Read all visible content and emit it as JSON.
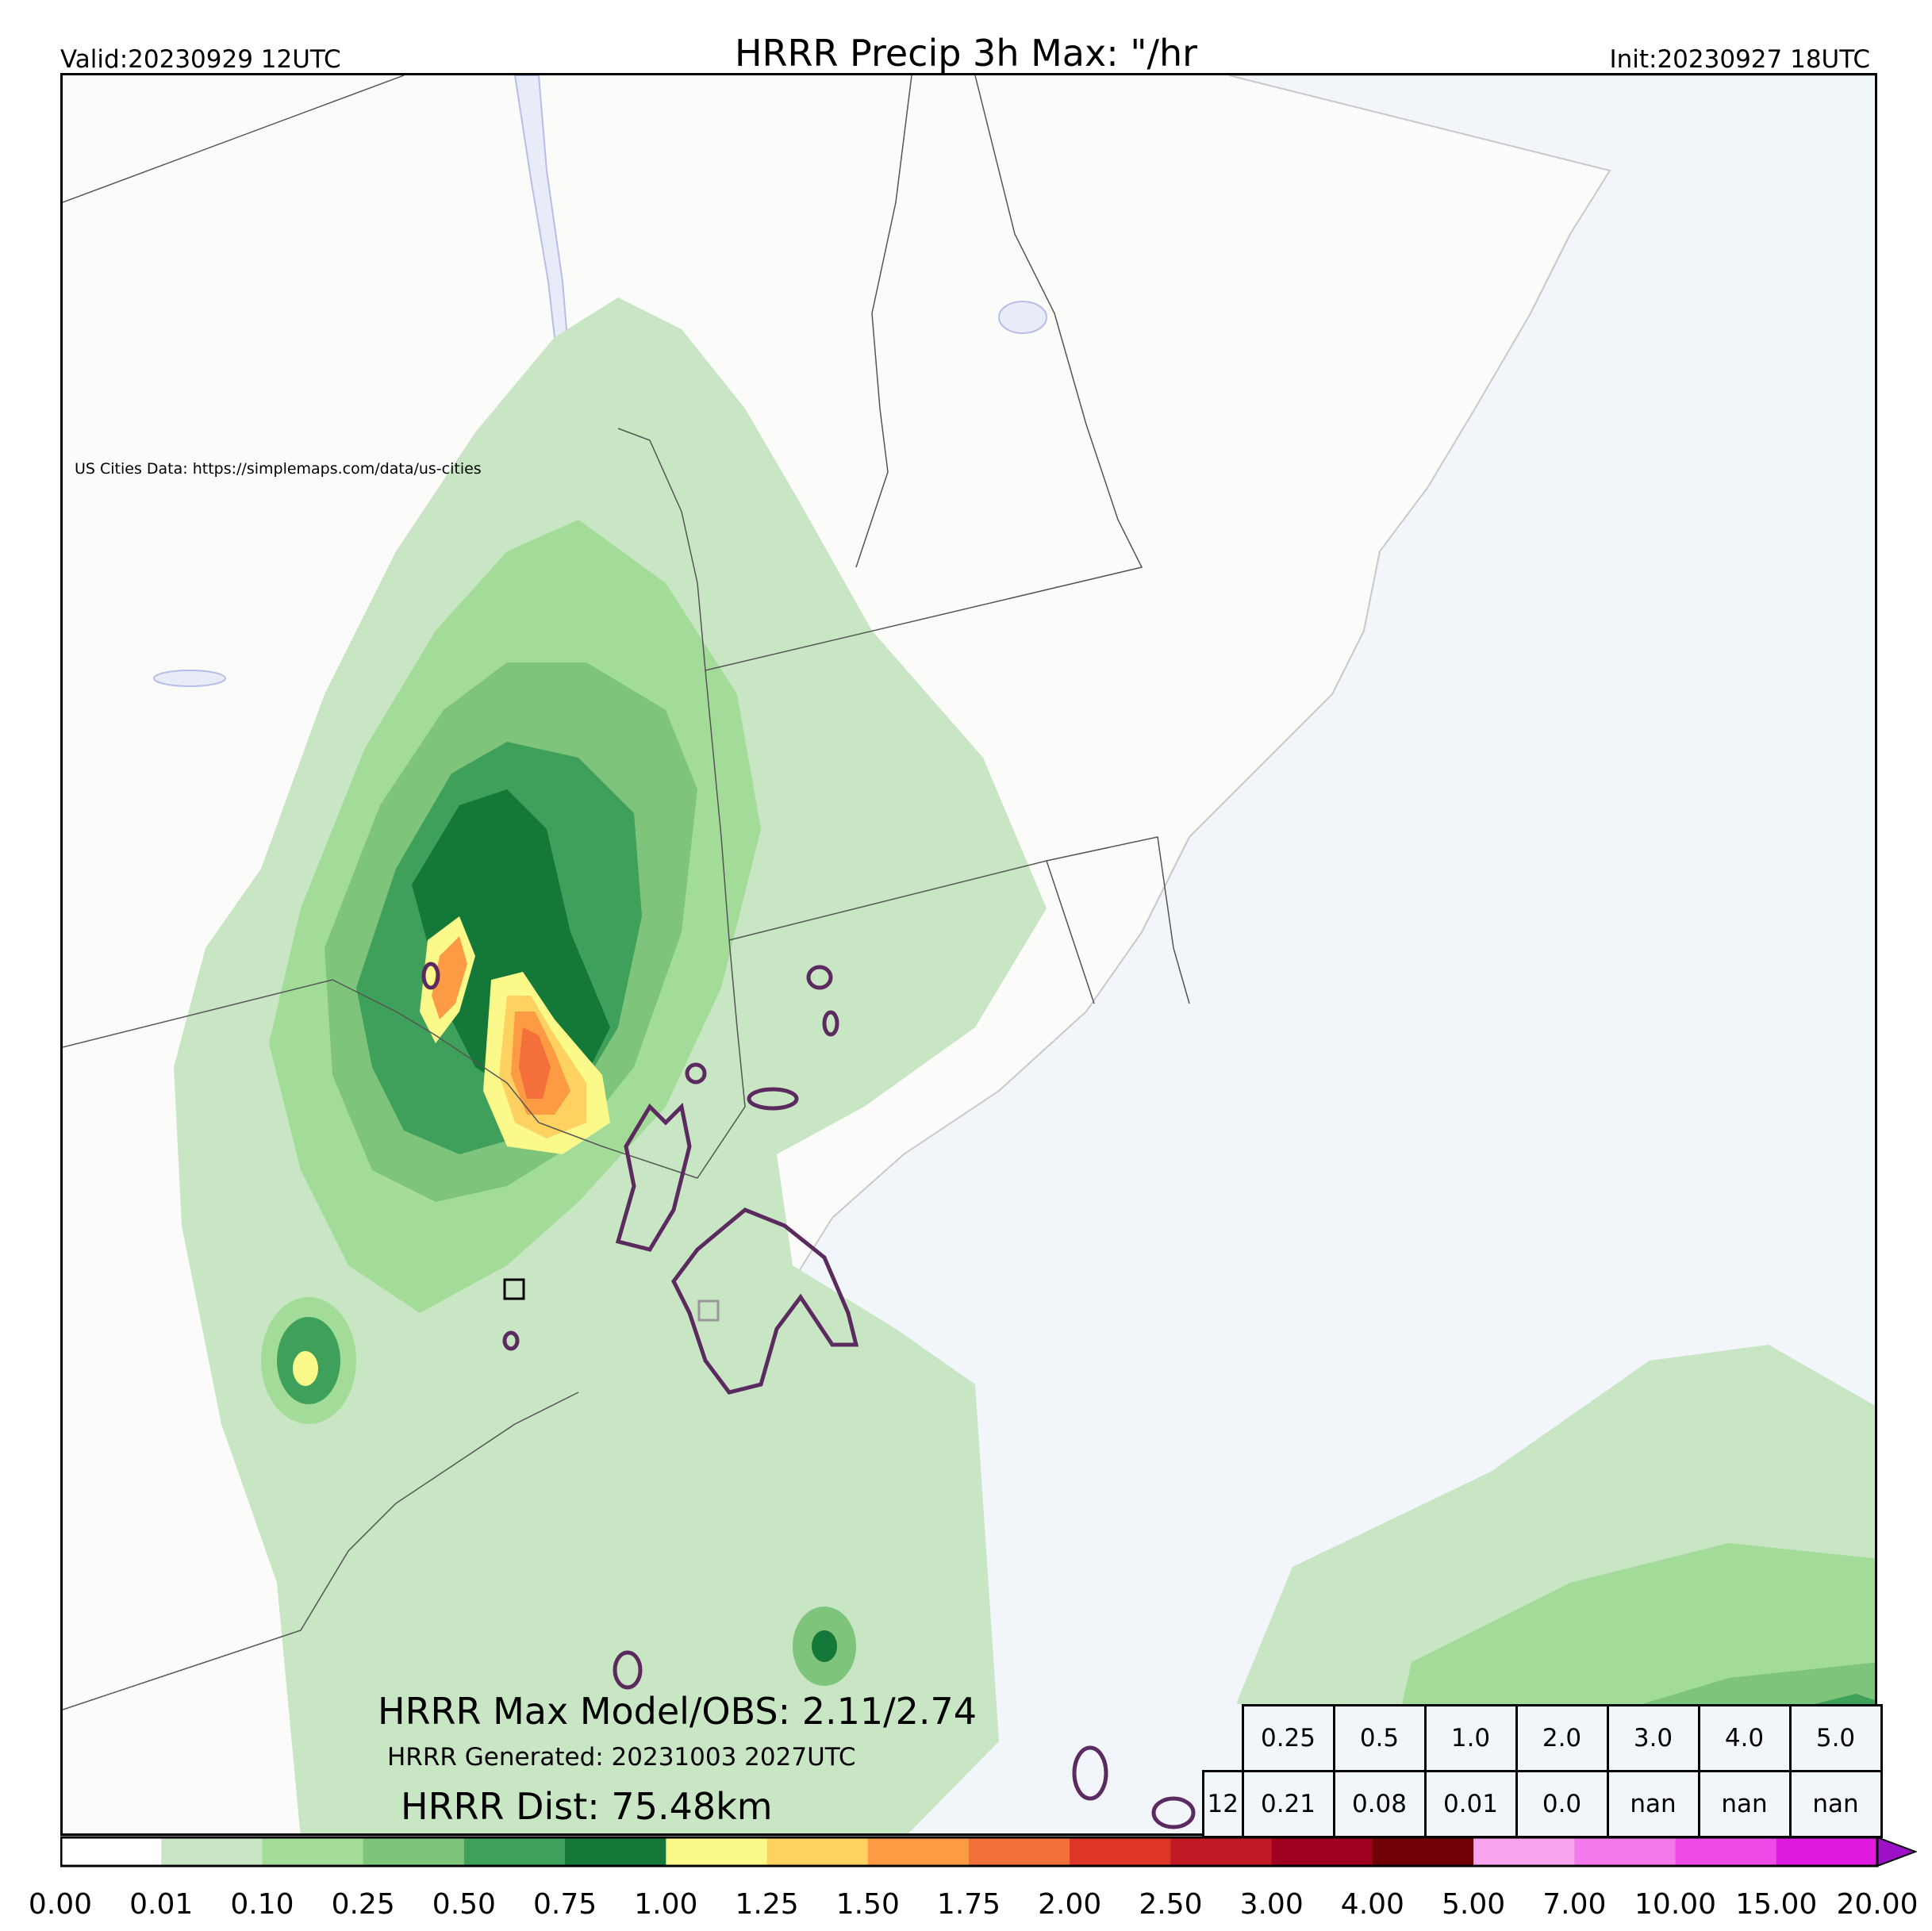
{
  "header": {
    "valid": "Valid:20230929 12UTC",
    "title": "HRRR Precip 3h Max: \"/hr",
    "init": "Init:20230927 18UTC"
  },
  "map": {
    "credit": "US Cities Data: https://simplemaps.com/data/us-cities",
    "colors": {
      "land": "#fbfbf9",
      "ocean": "#f2f5fa",
      "lake": "#e8ecf8",
      "obs_contour": "#5b2a5e"
    }
  },
  "stats": {
    "max_model_obs": "HRRR Max Model/OBS: 2.11/2.74",
    "generated": "HRRR Generated: 20231003 2027UTC",
    "dist": "HRRR Dist: 75.48km"
  },
  "table": {
    "thresholds": [
      "0.25",
      "0.5",
      "1.0",
      "2.0",
      "3.0",
      "4.0",
      "5.0"
    ],
    "row_label": "12",
    "values": [
      "0.21",
      "0.08",
      "0.01",
      "0.0",
      "nan",
      "nan",
      "nan"
    ]
  },
  "colorbar": {
    "ticks": [
      "0.00",
      "0.01",
      "0.10",
      "0.25",
      "0.50",
      "0.75",
      "1.00",
      "1.25",
      "1.50",
      "1.75",
      "2.00",
      "2.50",
      "3.00",
      "4.00",
      "5.00",
      "7.00",
      "10.00",
      "15.00",
      "20.00"
    ],
    "colors": [
      "#ffffff",
      "#c8e6c4",
      "#a2dc98",
      "#7ec47a",
      "#3ea05a",
      "#137838",
      "#fbf98a",
      "#fed160",
      "#fd9a44",
      "#f4703a",
      "#dd3526",
      "#c11a24",
      "#a00020",
      "#720008",
      "#f8a4ee",
      "#f27aec",
      "#ee4ae6",
      "#de1ae0",
      "#9c10c8"
    ],
    "extend_color": "#4a0a6a"
  }
}
